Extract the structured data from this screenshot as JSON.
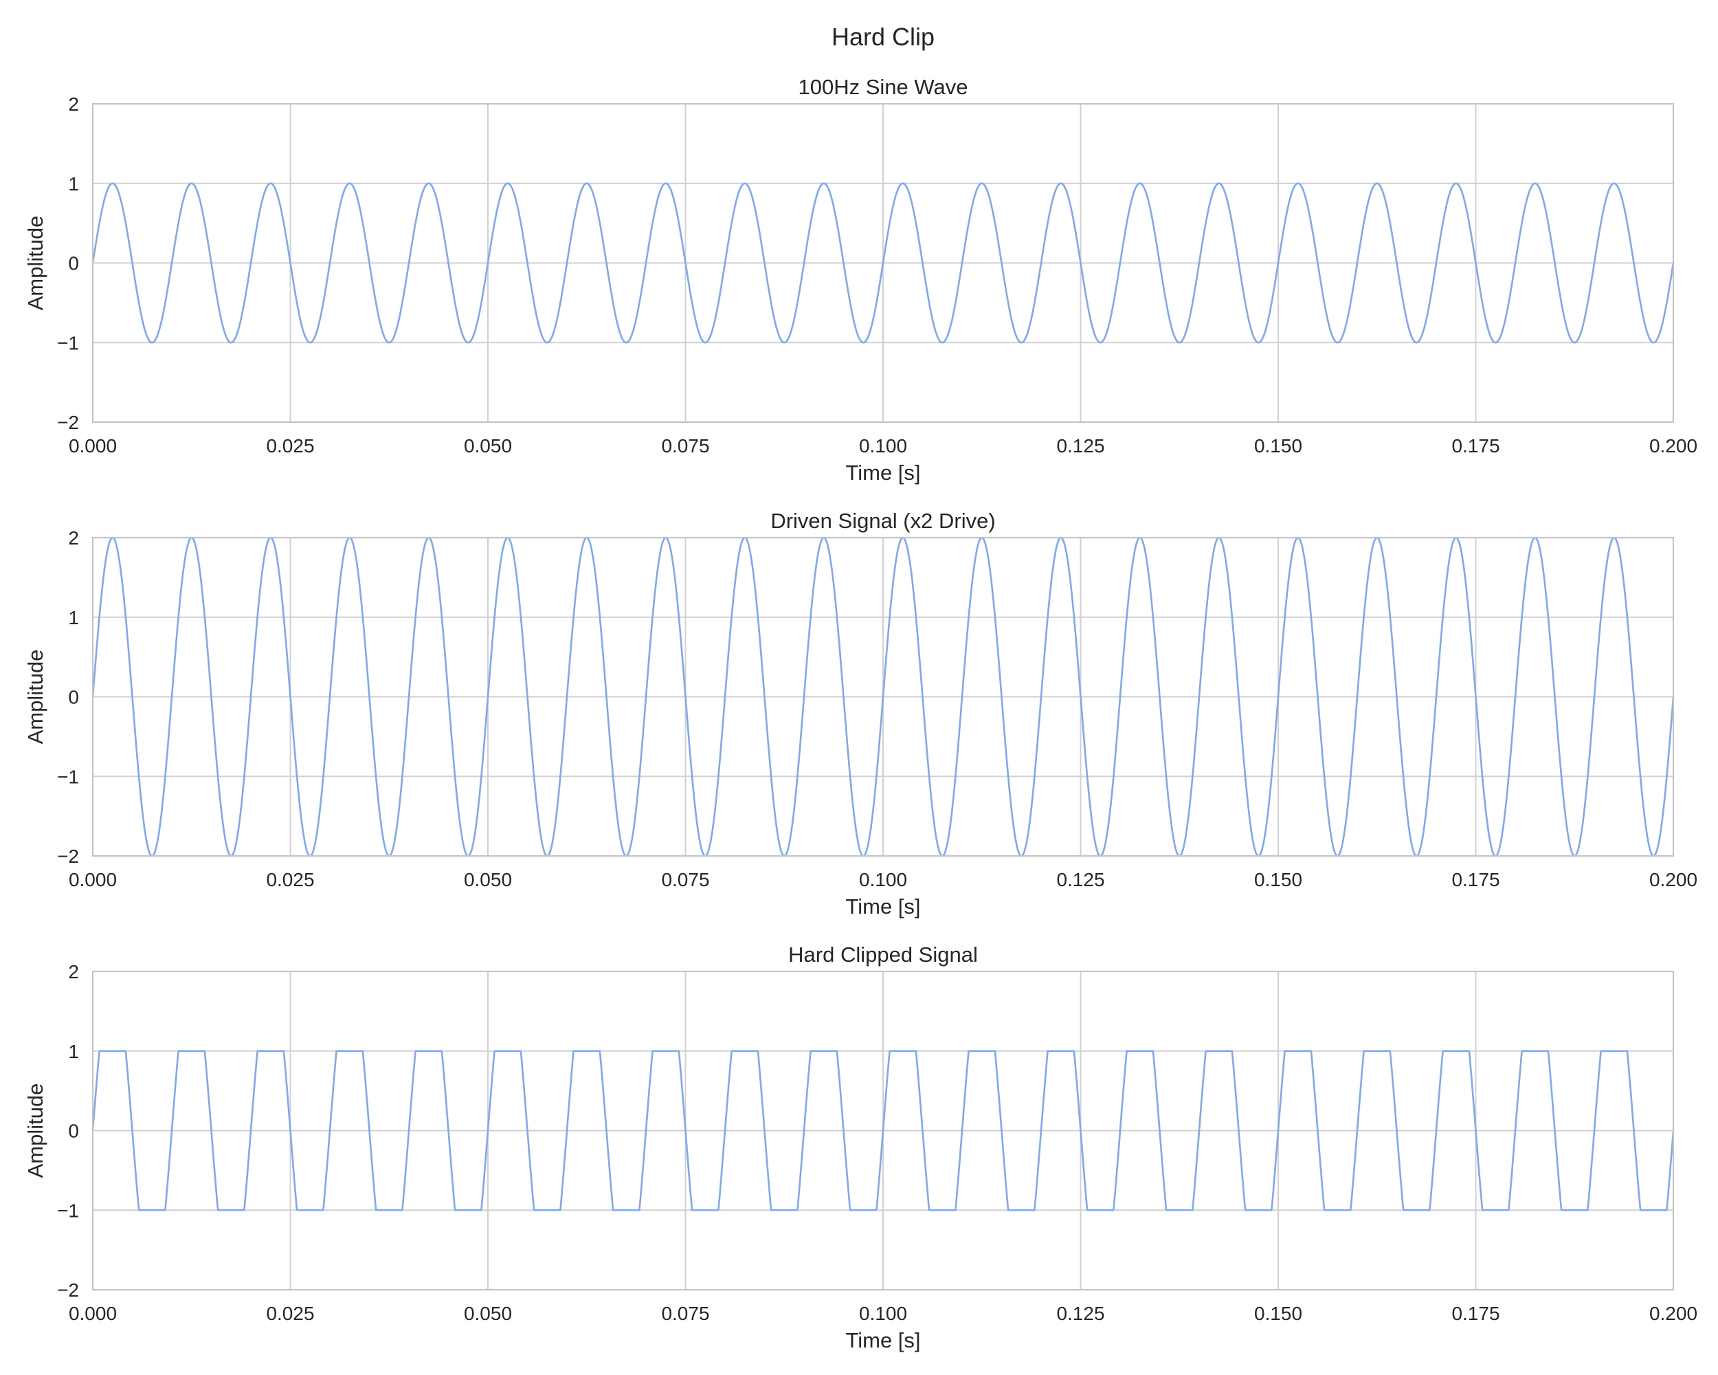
{
  "figure": {
    "suptitle": "Hard Clip"
  },
  "colors": {
    "line": "#7fa8f2",
    "grid": "#d0d0d0",
    "frame": "#c4c4c4",
    "text": "#262626",
    "background": "#ffffff"
  },
  "chart_data": [
    {
      "type": "line",
      "title": "100Hz Sine Wave",
      "xlabel": "Time [s]",
      "ylabel": "Amplitude",
      "xlim": [
        0,
        0.2
      ],
      "ylim": [
        -2,
        2
      ],
      "x_ticks": [
        "0.000",
        "0.025",
        "0.050",
        "0.075",
        "0.100",
        "0.125",
        "0.150",
        "0.175",
        "0.200"
      ],
      "y_ticks": [
        "−2",
        "−1",
        "0",
        "1",
        "2"
      ],
      "grid": true,
      "series": [
        {
          "frequency_hz": 100,
          "amplitude": 1,
          "waveform": "sine",
          "clip_level": null
        }
      ]
    },
    {
      "type": "line",
      "title": "Driven Signal (x2 Drive)",
      "xlabel": "Time [s]",
      "ylabel": "Amplitude",
      "xlim": [
        0,
        0.2
      ],
      "ylim": [
        -2,
        2
      ],
      "x_ticks": [
        "0.000",
        "0.025",
        "0.050",
        "0.075",
        "0.100",
        "0.125",
        "0.150",
        "0.175",
        "0.200"
      ],
      "y_ticks": [
        "−2",
        "−1",
        "0",
        "1",
        "2"
      ],
      "grid": true,
      "series": [
        {
          "frequency_hz": 100,
          "amplitude": 2,
          "waveform": "sine",
          "clip_level": null
        }
      ]
    },
    {
      "type": "line",
      "title": "Hard Clipped Signal",
      "xlabel": "Time [s]",
      "ylabel": "Amplitude",
      "xlim": [
        0,
        0.2
      ],
      "ylim": [
        -2,
        2
      ],
      "x_ticks": [
        "0.000",
        "0.025",
        "0.050",
        "0.075",
        "0.100",
        "0.125",
        "0.150",
        "0.175",
        "0.200"
      ],
      "y_ticks": [
        "−2",
        "−1",
        "0",
        "1",
        "2"
      ],
      "grid": true,
      "series": [
        {
          "frequency_hz": 100,
          "amplitude": 2,
          "waveform": "sine",
          "clip_level": 1
        }
      ]
    }
  ]
}
